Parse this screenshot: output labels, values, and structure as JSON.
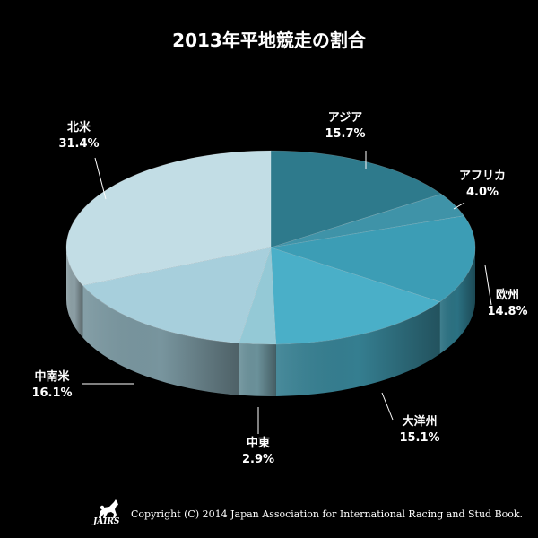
{
  "chart_data": {
    "type": "pie",
    "title": "2013年平地競走の割合",
    "categories": [
      "アジア",
      "アフリカ",
      "欧州",
      "大洋州",
      "中東",
      "中南米",
      "北米"
    ],
    "values": [
      15.7,
      4.0,
      14.8,
      15.1,
      2.9,
      16.1,
      31.4
    ],
    "value_labels": [
      "15.7%",
      "4.0%",
      "14.8%",
      "15.1%",
      "2.9%",
      "16.1%",
      "31.4%"
    ],
    "colors": [
      "#2e7a8c",
      "#3f93a8",
      "#3c9db5",
      "#4aafc8",
      "#94c9d6",
      "#a7cfdc",
      "#c2dde5"
    ],
    "style": "3d-pie"
  },
  "logo": {
    "text": "JAIRS",
    "name": "jairs-horse-logo"
  },
  "copyright": "Copyright (C) 2014 Japan Association for International Racing and Stud Book."
}
